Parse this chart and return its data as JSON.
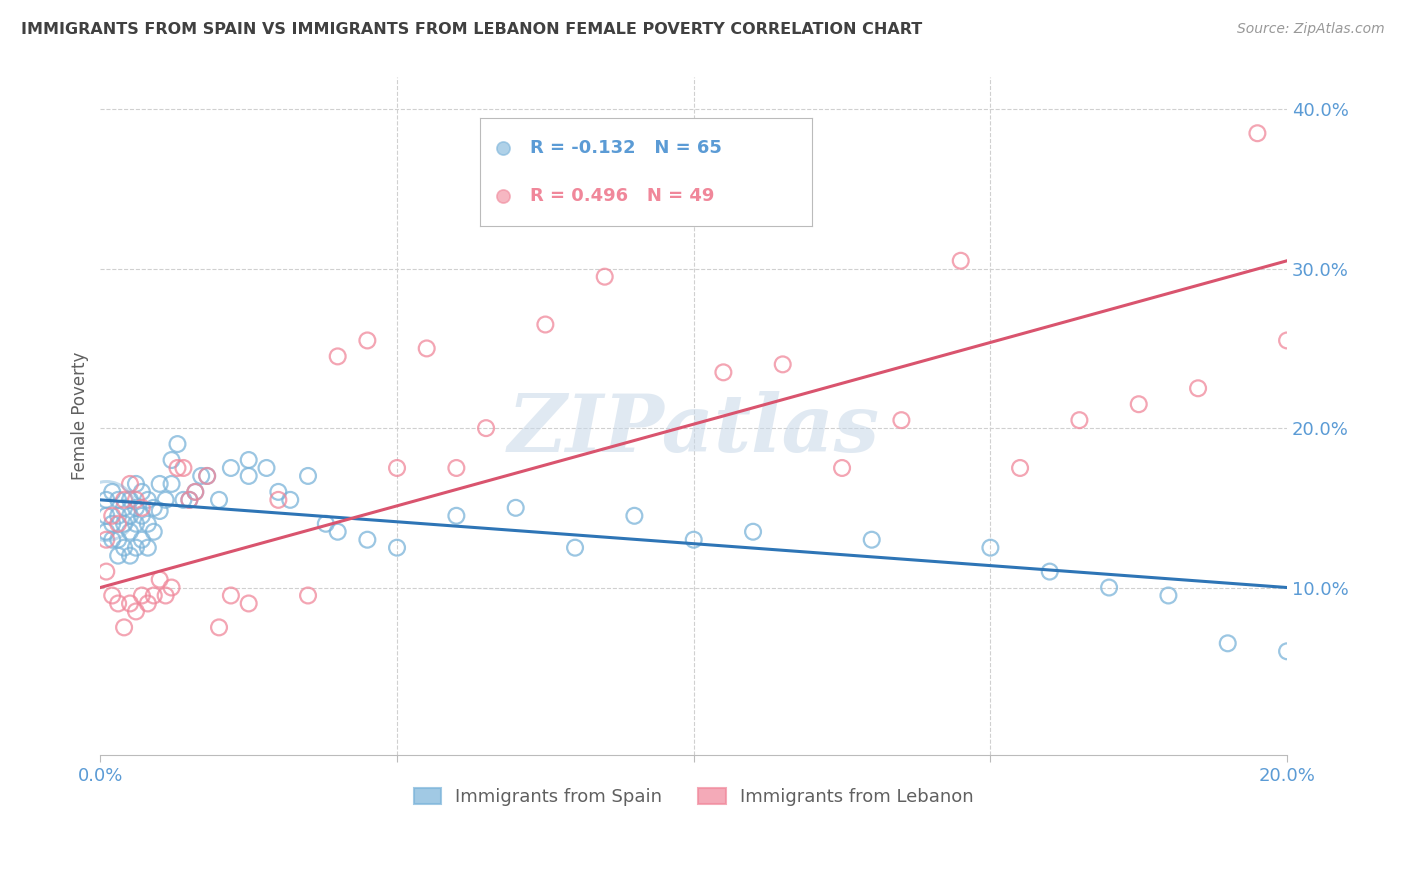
{
  "title": "IMMIGRANTS FROM SPAIN VS IMMIGRANTS FROM LEBANON FEMALE POVERTY CORRELATION CHART",
  "source": "Source: ZipAtlas.com",
  "ylabel": "Female Poverty",
  "xlim": [
    0.0,
    0.2
  ],
  "ylim": [
    -0.005,
    0.42
  ],
  "yticks": [
    0.1,
    0.2,
    0.3,
    0.4
  ],
  "spain_color": "#7ab3d9",
  "lebanon_color": "#f0879a",
  "spain_line_color": "#2e75b6",
  "lebanon_line_color": "#d9546e",
  "spain_R": -0.132,
  "spain_N": 65,
  "lebanon_R": 0.496,
  "lebanon_N": 49,
  "legend_label_spain": "Immigrants from Spain",
  "legend_label_lebanon": "Immigrants from Lebanon",
  "spain_x": [
    0.001,
    0.001,
    0.001,
    0.002,
    0.002,
    0.002,
    0.003,
    0.003,
    0.003,
    0.003,
    0.004,
    0.004,
    0.004,
    0.005,
    0.005,
    0.005,
    0.005,
    0.006,
    0.006,
    0.006,
    0.006,
    0.007,
    0.007,
    0.007,
    0.008,
    0.008,
    0.008,
    0.009,
    0.009,
    0.01,
    0.01,
    0.011,
    0.012,
    0.012,
    0.013,
    0.014,
    0.015,
    0.016,
    0.017,
    0.018,
    0.02,
    0.022,
    0.025,
    0.025,
    0.028,
    0.03,
    0.032,
    0.035,
    0.038,
    0.04,
    0.045,
    0.05,
    0.06,
    0.07,
    0.08,
    0.09,
    0.1,
    0.11,
    0.13,
    0.15,
    0.16,
    0.17,
    0.18,
    0.19,
    0.2
  ],
  "spain_y": [
    0.155,
    0.145,
    0.135,
    0.16,
    0.14,
    0.13,
    0.155,
    0.145,
    0.13,
    0.12,
    0.15,
    0.14,
    0.125,
    0.155,
    0.145,
    0.135,
    0.12,
    0.165,
    0.15,
    0.14,
    0.125,
    0.16,
    0.145,
    0.13,
    0.155,
    0.14,
    0.125,
    0.15,
    0.135,
    0.165,
    0.148,
    0.155,
    0.18,
    0.165,
    0.19,
    0.155,
    0.155,
    0.16,
    0.17,
    0.17,
    0.155,
    0.175,
    0.18,
    0.17,
    0.175,
    0.16,
    0.155,
    0.17,
    0.14,
    0.135,
    0.13,
    0.125,
    0.145,
    0.15,
    0.125,
    0.145,
    0.13,
    0.135,
    0.13,
    0.125,
    0.11,
    0.1,
    0.095,
    0.065,
    0.06
  ],
  "lebanon_x": [
    0.001,
    0.001,
    0.002,
    0.002,
    0.003,
    0.003,
    0.004,
    0.004,
    0.005,
    0.005,
    0.006,
    0.006,
    0.007,
    0.007,
    0.008,
    0.009,
    0.01,
    0.011,
    0.012,
    0.013,
    0.014,
    0.015,
    0.016,
    0.018,
    0.02,
    0.022,
    0.025,
    0.03,
    0.035,
    0.04,
    0.045,
    0.05,
    0.055,
    0.06,
    0.065,
    0.075,
    0.085,
    0.095,
    0.105,
    0.115,
    0.125,
    0.135,
    0.145,
    0.155,
    0.165,
    0.175,
    0.185,
    0.195,
    0.2
  ],
  "lebanon_y": [
    0.13,
    0.11,
    0.145,
    0.095,
    0.14,
    0.09,
    0.155,
    0.075,
    0.165,
    0.09,
    0.155,
    0.085,
    0.15,
    0.095,
    0.09,
    0.095,
    0.105,
    0.095,
    0.1,
    0.175,
    0.175,
    0.155,
    0.16,
    0.17,
    0.075,
    0.095,
    0.09,
    0.155,
    0.095,
    0.245,
    0.255,
    0.175,
    0.25,
    0.175,
    0.2,
    0.265,
    0.295,
    0.365,
    0.235,
    0.24,
    0.175,
    0.205,
    0.305,
    0.175,
    0.205,
    0.215,
    0.225,
    0.385,
    0.255
  ],
  "spain_line_x0": 0.0,
  "spain_line_x1": 0.2,
  "spain_line_y0": 0.155,
  "spain_line_y1": 0.1,
  "lebanon_line_x0": 0.0,
  "lebanon_line_x1": 0.2,
  "lebanon_line_y0": 0.1,
  "lebanon_line_y1": 0.305,
  "watermark": "ZIPatlas",
  "background_color": "#ffffff",
  "grid_color": "#d0d0d0",
  "axis_color": "#5b9bd5",
  "title_color": "#404040",
  "title_fontsize": 11.5,
  "scatter_size": 130,
  "scatter_lw": 1.6,
  "scatter_alpha": 0.75
}
